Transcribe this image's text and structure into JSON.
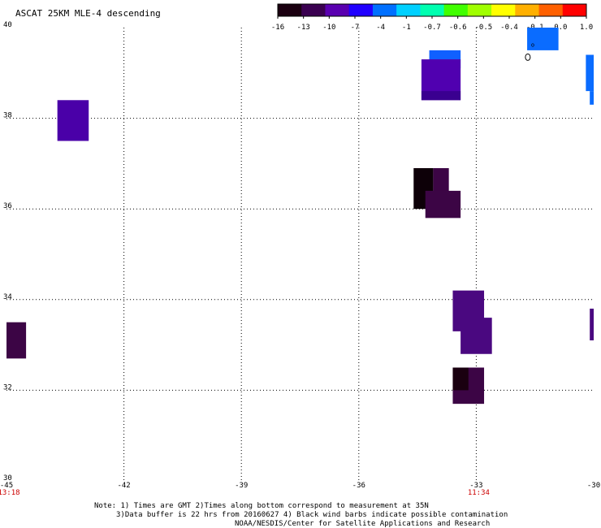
{
  "chart_data": {
    "type": "heatmap",
    "title": "ASCAT 25KM MLE-4 descending",
    "xlabel": "",
    "ylabel": "",
    "xlim": [
      -45,
      -30
    ],
    "ylim": [
      30,
      40
    ],
    "x_ticks": [
      -45,
      -42,
      -39,
      -36,
      -33,
      -30
    ],
    "x_tick_labels": [
      "-45",
      "-42",
      "-39",
      "-36",
      "-33",
      "-30"
    ],
    "y_ticks": [
      30,
      32,
      34,
      36,
      38,
      40
    ],
    "y_tick_labels": [
      "30",
      "32",
      "34",
      "36",
      "38",
      "40"
    ],
    "grid": true,
    "time_labels": [
      {
        "x": -45,
        "text": "13:18"
      },
      {
        "x": -33,
        "text": "11:34"
      }
    ],
    "colorbar": {
      "labels": [
        "-16",
        "-13",
        "-10",
        "-7",
        "-4",
        "-1",
        "-0.7",
        "-0.6",
        "-0.5",
        "-0.4",
        "-0.1",
        "0.0",
        "1.0"
      ],
      "colors": [
        "#1a0010",
        "#3a0050",
        "#5a00b0",
        "#2000ff",
        "#0070ff",
        "#00d0ff",
        "#00ffb0",
        "#40ff00",
        "#a0ff00",
        "#ffff00",
        "#ffb000",
        "#ff6000",
        "#ff0000"
      ],
      "position": "top-right"
    },
    "cells": [
      {
        "lon0": -43.7,
        "lon1": -42.9,
        "lat0": 37.5,
        "lat1": 38.4,
        "value": -13,
        "color": "#4a00a8"
      },
      {
        "lon0": -45.0,
        "lon1": -44.5,
        "lat0": 32.7,
        "lat1": 33.5,
        "value": -16,
        "color": "#3c0545"
      },
      {
        "lon0": -34.2,
        "lon1": -33.4,
        "lat0": 39.1,
        "lat1": 39.5,
        "value": -7,
        "color": "#1060ff"
      },
      {
        "lon0": -34.4,
        "lon1": -33.4,
        "lat0": 38.4,
        "lat1": 39.3,
        "value": -13,
        "color": "#5000b0"
      },
      {
        "lon0": -34.4,
        "lon1": -33.4,
        "lat0": 38.4,
        "lat1": 38.6,
        "value": -13,
        "color": "#3a0090"
      },
      {
        "lon0": -31.7,
        "lon1": -30.9,
        "lat0": 39.5,
        "lat1": 40.0,
        "value": -4,
        "color": "#0a6cff"
      },
      {
        "lon0": -30.2,
        "lon1": -30.0,
        "lat0": 38.6,
        "lat1": 39.4,
        "value": -4,
        "color": "#0a6cff"
      },
      {
        "lon0": -30.1,
        "lon1": -30.0,
        "lat0": 38.3,
        "lat1": 38.6,
        "value": -4,
        "color": "#0a6cff"
      },
      {
        "lon0": -34.6,
        "lon1": -34.1,
        "lat0": 36.0,
        "lat1": 36.9,
        "value": -16,
        "color": "#0d0008"
      },
      {
        "lon0": -34.1,
        "lon1": -33.7,
        "lat0": 36.3,
        "lat1": 36.9,
        "value": -16,
        "color": "#3c0545"
      },
      {
        "lon0": -34.3,
        "lon1": -33.4,
        "lat0": 35.8,
        "lat1": 36.4,
        "value": -16,
        "color": "#3c0545"
      },
      {
        "lon0": -33.6,
        "lon1": -32.8,
        "lat0": 33.3,
        "lat1": 34.2,
        "value": -13,
        "color": "#4a0880"
      },
      {
        "lon0": -33.4,
        "lon1": -32.6,
        "lat0": 32.8,
        "lat1": 33.6,
        "value": -13,
        "color": "#4a0880"
      },
      {
        "lon0": -30.1,
        "lon1": -30.0,
        "lat0": 33.1,
        "lat1": 33.8,
        "value": -13,
        "color": "#4a0880"
      },
      {
        "lon0": -33.6,
        "lon1": -32.8,
        "lat0": 31.7,
        "lat1": 32.5,
        "value": -16,
        "color": "#3c0545"
      },
      {
        "lon0": -33.6,
        "lon1": -33.2,
        "lat0": 32.0,
        "lat1": 32.5,
        "value": -16,
        "color": "#1a0010"
      }
    ],
    "barb_marker": {
      "lon": -31.6,
      "lat": 39.6,
      "text": "o"
    }
  },
  "notes": {
    "line1": "Note: 1) Times are GMT 2)Times along bottom correspond to measurement at 35N",
    "line2": "3)Data buffer is 22 hrs from 20160627 4) Black wind barbs indicate possible contamination",
    "line3": "NOAA/NESDIS/Center for Satellite Applications and Research"
  }
}
